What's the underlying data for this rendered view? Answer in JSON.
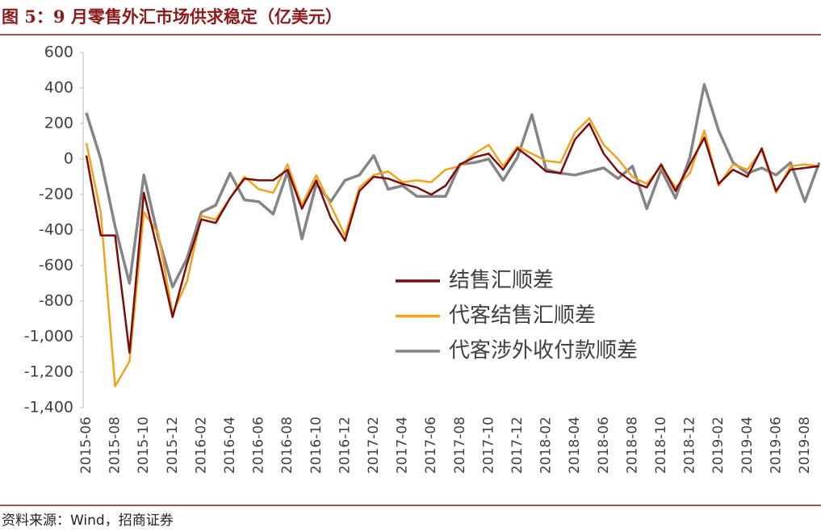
{
  "chart_data": {
    "type": "line",
    "title": "图 5：9 月零售外汇市场供求稳定（亿美元）",
    "source": "资料来源：Wind，招商证券",
    "categories": [
      "2015-06",
      null,
      "2015-08",
      null,
      "2015-10",
      null,
      "2015-12",
      null,
      "2016-02",
      null,
      "2016-04",
      null,
      "2016-06",
      null,
      "2016-08",
      null,
      "2016-10",
      null,
      "2016-12",
      null,
      "2017-02",
      null,
      "2017-04",
      null,
      "2017-06",
      null,
      "2017-08",
      null,
      "2017-10",
      null,
      "2017-12",
      null,
      "2018-02",
      null,
      "2018-04",
      null,
      "2018-06",
      null,
      "2018-08",
      null,
      "2018-10",
      null,
      "2018-12",
      null,
      "2019-02",
      null,
      "2019-04",
      null,
      "2019-06",
      null,
      "2019-08",
      null
    ],
    "series": [
      {
        "name": "结售汇顺差",
        "color": "#7b0c0c",
        "values": [
          20,
          -430,
          -430,
          -1090,
          -190,
          -530,
          -890,
          -590,
          -340,
          -360,
          -220,
          -110,
          -120,
          -120,
          -60,
          -280,
          -120,
          -330,
          -460,
          -180,
          -100,
          -110,
          -140,
          -160,
          -200,
          -150,
          -30,
          10,
          30,
          -60,
          60,
          0,
          -70,
          -80,
          110,
          200,
          30,
          -70,
          -130,
          -160,
          -30,
          -180,
          -30,
          120,
          -140,
          -60,
          -100,
          60,
          -180,
          -60,
          -50,
          -40
        ]
      },
      {
        "name": "代客结售汇顺差",
        "color": "#f4a11d",
        "values": [
          90,
          -300,
          -1280,
          -1140,
          -300,
          -420,
          -870,
          -690,
          -320,
          -340,
          -220,
          -100,
          -170,
          -190,
          -30,
          -260,
          -90,
          -260,
          -430,
          -160,
          -90,
          -70,
          -130,
          -120,
          -130,
          -60,
          -40,
          30,
          80,
          -40,
          70,
          30,
          -10,
          -20,
          150,
          230,
          80,
          0,
          -100,
          -140,
          -40,
          -160,
          -80,
          160,
          -150,
          -30,
          -60,
          50,
          -190,
          -40,
          -30,
          -40
        ]
      },
      {
        "name": "代客涉外收付款顺差",
        "color": "#858585",
        "values": [
          260,
          0,
          -380,
          -700,
          -90,
          -440,
          -720,
          -560,
          -300,
          -260,
          -80,
          -230,
          -240,
          -310,
          -70,
          -450,
          -140,
          -240,
          -120,
          -90,
          20,
          -170,
          -150,
          -210,
          -210,
          -210,
          -30,
          -20,
          0,
          -120,
          10,
          250,
          -60,
          -80,
          -90,
          -70,
          -50,
          -110,
          -40,
          -280,
          -60,
          -220,
          10,
          420,
          160,
          -20,
          -80,
          -50,
          -90,
          -20,
          -240,
          -20
        ]
      }
    ],
    "ylim": [
      -1400,
      600
    ],
    "yticks": [
      600,
      400,
      200,
      0,
      -200,
      -400,
      -600,
      -800,
      {
        "value": -1000,
        "label": "-1,000"
      },
      {
        "value": -1200,
        "label": "-1,200"
      },
      {
        "value": -1400,
        "label": "-1,400"
      }
    ]
  }
}
